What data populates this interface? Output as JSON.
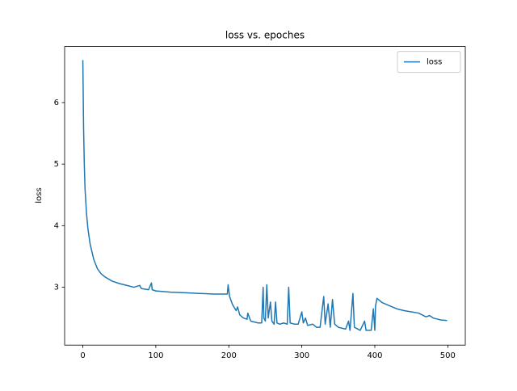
{
  "chart_data": {
    "type": "line",
    "title": "loss vs. epoches",
    "y_label": "loss",
    "x": [
      0,
      1,
      2,
      3,
      5,
      7,
      10,
      15,
      20,
      25,
      30,
      40,
      50,
      60,
      70,
      78,
      80,
      90,
      94,
      95,
      100,
      120,
      140,
      160,
      180,
      198,
      199,
      200,
      201,
      205,
      210,
      212,
      215,
      220,
      225,
      226,
      230,
      240,
      245,
      247,
      248,
      250,
      252,
      254,
      257,
      259,
      262,
      264,
      266,
      270,
      275,
      280,
      282,
      284,
      290,
      295,
      300,
      302,
      305,
      308,
      315,
      320,
      325,
      330,
      332,
      336,
      339,
      342,
      345,
      350,
      360,
      364,
      366,
      370,
      372,
      380,
      386,
      388,
      395,
      398,
      400,
      401,
      403,
      410,
      420,
      430,
      440,
      450,
      460,
      470,
      475,
      480,
      490,
      499
    ],
    "series": [
      {
        "name": "loss",
        "color": "#1f77b4",
        "values": [
          6.69,
          5.6,
          5.0,
          4.6,
          4.2,
          3.95,
          3.7,
          3.45,
          3.3,
          3.22,
          3.17,
          3.1,
          3.06,
          3.03,
          3.0,
          3.03,
          2.98,
          2.96,
          3.07,
          2.96,
          2.94,
          2.92,
          2.91,
          2.9,
          2.89,
          2.89,
          3.04,
          2.95,
          2.85,
          2.72,
          2.62,
          2.68,
          2.55,
          2.5,
          2.48,
          2.58,
          2.45,
          2.42,
          2.42,
          3.0,
          2.5,
          2.45,
          3.04,
          2.5,
          2.76,
          2.45,
          2.4,
          2.76,
          2.42,
          2.4,
          2.42,
          2.4,
          3.0,
          2.42,
          2.4,
          2.4,
          2.6,
          2.42,
          2.5,
          2.38,
          2.4,
          2.35,
          2.35,
          2.85,
          2.4,
          2.73,
          2.35,
          2.8,
          2.4,
          2.35,
          2.32,
          2.45,
          2.3,
          2.9,
          2.35,
          2.3,
          2.45,
          2.3,
          2.3,
          2.65,
          2.3,
          2.7,
          2.82,
          2.75,
          2.7,
          2.65,
          2.62,
          2.6,
          2.58,
          2.52,
          2.54,
          2.5,
          2.47,
          2.46
        ]
      }
    ],
    "xlim": [
      -24.95,
      523.95
    ],
    "ylim": [
      2.06,
      6.91
    ],
    "xticks": [
      0,
      100,
      200,
      300,
      400,
      500
    ],
    "yticks": [
      3,
      4,
      5,
      6
    ],
    "legend": "upper right"
  }
}
